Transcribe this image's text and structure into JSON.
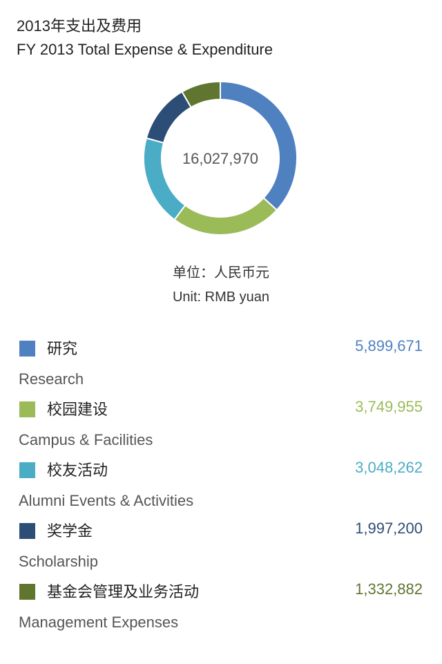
{
  "header": {
    "title_cn": "2013年支出及费用",
    "title_en": "FY 2013 Total Expense & Expenditure"
  },
  "unit": {
    "cn": "单位：人民币元",
    "en": "Unit: RMB yuan"
  },
  "chart_data": {
    "type": "pie",
    "variant": "donut",
    "total": "16,027,970",
    "slices": [
      {
        "label_cn": "研究",
        "label_en": "Research",
        "value": 5899671,
        "display": "5,899,671",
        "color": "#4f81c1"
      },
      {
        "label_cn": "校园建设",
        "label_en": "Campus & Facilities",
        "value": 3749955,
        "display": "3,749,955",
        "color": "#9bbb59"
      },
      {
        "label_cn": "校友活动",
        "label_en": "Alumni Events & Activities",
        "value": 3048262,
        "display": "3,048,262",
        "color": "#4bacc6"
      },
      {
        "label_cn": "奖学金",
        "label_en": "Scholarship",
        "value": 1997200,
        "display": "1,997,200",
        "color": "#2c4d75"
      },
      {
        "label_cn": "基金会管理及业务活动",
        "label_en": "Management Expenses",
        "value": 1332882,
        "display": "1,332,882",
        "color": "#5f7530"
      }
    ]
  }
}
